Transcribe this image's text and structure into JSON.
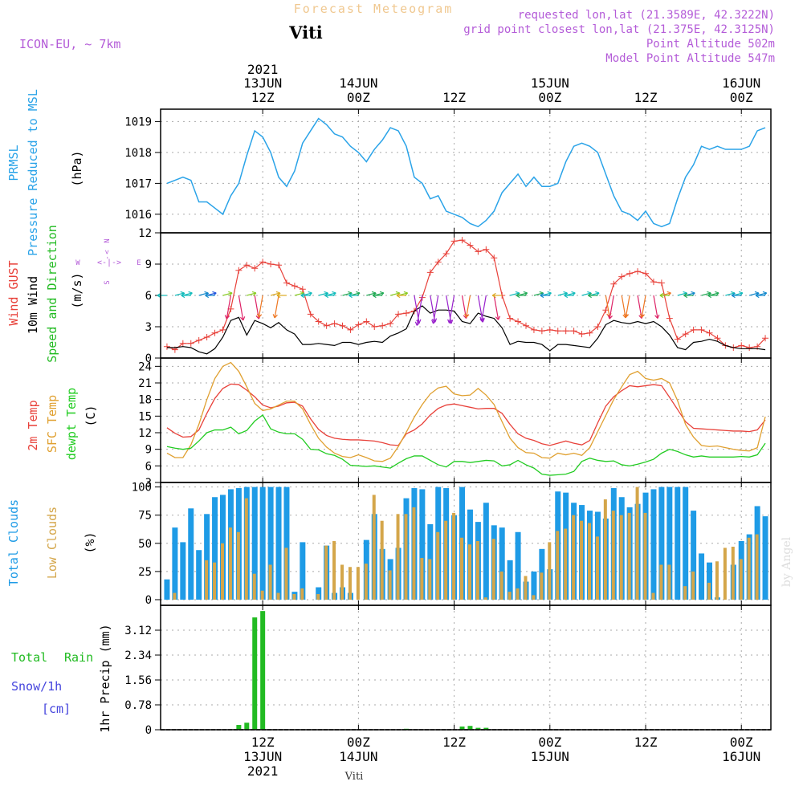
{
  "header": {
    "title": "Forecast Meteogram",
    "location": "Viti",
    "model": "ICON-EU, ~ 7km",
    "requested": "requested lon,lat (21.3589E, 42.3222N)",
    "gridpoint": "grid point closest lon,lat (21.375E, 42.3125N)",
    "point_altitude": "Point Altitude 502m",
    "model_altitude": "Model Point Altitude 547m"
  },
  "colors": {
    "prmsl": "#2aa3e8",
    "gust": "#e8413a",
    "wind10m": "#000000",
    "wind_dir": "#22bb22",
    "temp2m": "#e8413a",
    "sfc": "#e0a030",
    "dewpt": "#22cc22",
    "total_clouds": "#1e9be6",
    "low_clouds": "#d4a64a",
    "rain": "#22bb22",
    "snow": "#4444dd",
    "meta": "#b45cd8",
    "title_orange": "#f0c890"
  },
  "top_axis": [
    {
      "t": 12,
      "l1": "2021",
      "l2": "13JUN",
      "l3": "12Z"
    },
    {
      "t": 24,
      "l1": "",
      "l2": "14JUN",
      "l3": "00Z"
    },
    {
      "t": 36,
      "l1": "",
      "l2": "",
      "l3": "12Z"
    },
    {
      "t": 48,
      "l1": "",
      "l2": "15JUN",
      "l3": "00Z"
    },
    {
      "t": 60,
      "l1": "",
      "l2": "",
      "l3": "12Z"
    },
    {
      "t": 72,
      "l1": "",
      "l2": "16JUN",
      "l3": "00Z"
    }
  ],
  "bottom_axis": [
    {
      "t": 12,
      "l1": "12Z",
      "l2": "13JUN",
      "l3": "2021"
    },
    {
      "t": 24,
      "l1": "00Z",
      "l2": "14JUN",
      "l3": ""
    },
    {
      "t": 36,
      "l1": "12Z",
      "l2": "",
      "l3": ""
    },
    {
      "t": 48,
      "l1": "00Z",
      "l2": "15JUN",
      "l3": ""
    },
    {
      "t": 60,
      "l1": "12Z",
      "l2": "",
      "l3": ""
    },
    {
      "t": 72,
      "l1": "00Z",
      "l2": "16JUN",
      "l3": ""
    }
  ],
  "footer_label": "Viti",
  "watermark": "by Angel",
  "panel_labels": {
    "prmsl": [
      "PRMSL",
      "Pressure Reduced to MSL",
      "(hPa)"
    ],
    "wind": [
      "Wind GUST",
      "10m Wind",
      "Speed and Direction",
      "(m/s)"
    ],
    "compass": {
      "n": "N",
      "s": "S",
      "w": "W",
      "e": "E",
      "arrows": "<-|->"
    },
    "temp": [
      "2m Temp",
      "SFC Temp",
      "dewpt Temp",
      "(C)"
    ],
    "clouds": [
      "Total Clouds",
      "Low Clouds",
      "(%)"
    ],
    "precip": [
      "Total",
      "Rain",
      "Snow/1h",
      "[cm]",
      "1hr Precip (mm)"
    ]
  },
  "chart_data": [
    {
      "type": "line",
      "title": "PRMSL Pressure Reduced to MSL",
      "ylabel": "(hPa)",
      "ylim": [
        1015.4,
        1019.4
      ],
      "yticks": [
        1016,
        1017,
        1018,
        1019
      ],
      "x_hours": [
        0,
        1,
        2,
        3,
        4,
        5,
        6,
        7,
        8,
        9,
        10,
        11,
        12,
        13,
        14,
        15,
        16,
        17,
        18,
        19,
        20,
        21,
        22,
        23,
        24,
        25,
        26,
        27,
        28,
        29,
        30,
        31,
        32,
        33,
        34,
        35,
        36,
        37,
        38,
        39,
        40,
        41,
        42,
        43,
        44,
        45,
        46,
        47,
        48,
        49,
        50,
        51,
        52,
        53,
        54,
        55,
        56,
        57,
        58,
        59,
        60,
        61,
        62,
        63,
        64,
        65,
        66,
        67,
        68,
        69,
        70,
        71,
        72,
        73,
        74,
        75
      ],
      "series": [
        {
          "values": [
            1017.0,
            1017.1,
            1017.2,
            1017.1,
            1016.4,
            1016.4,
            1016.2,
            1016.0,
            1016.6,
            1017.0,
            1017.9,
            1018.7,
            1018.5,
            1018.0,
            1017.2,
            1016.9,
            1017.4,
            1018.3,
            1018.7,
            1019.1,
            1018.9,
            1018.6,
            1018.5,
            1018.2,
            1018.0,
            1017.7,
            1018.1,
            1018.4,
            1018.8,
            1018.7,
            1018.2,
            1017.2,
            1017.0,
            1016.5,
            1016.6,
            1016.1,
            1016.0,
            1015.9,
            1015.7,
            1015.6,
            1015.8,
            1016.1,
            1016.7,
            1017.0,
            1017.3,
            1016.9,
            1017.2,
            1016.9,
            1016.9,
            1017.0,
            1017.7,
            1018.2,
            1018.3,
            1018.2,
            1018.0,
            1017.3,
            1016.6,
            1016.1,
            1016.0,
            1015.8,
            1016.1,
            1015.7,
            1015.6,
            1015.7,
            1016.5,
            1017.2,
            1017.6,
            1018.2,
            1018.1,
            1018.2,
            1018.1,
            1018.1,
            1018.1,
            1018.2,
            1018.7,
            1018.8
          ]
        }
      ]
    },
    {
      "type": "line",
      "title": "Wind GUST / 10m Wind Speed and Direction",
      "ylabel": "(m/s)",
      "ylim": [
        0,
        12
      ],
      "yticks": [
        0,
        3,
        6,
        9,
        12
      ],
      "x_hours": [
        0,
        1,
        2,
        3,
        4,
        5,
        6,
        7,
        8,
        9,
        10,
        11,
        12,
        13,
        14,
        15,
        16,
        17,
        18,
        19,
        20,
        21,
        22,
        23,
        24,
        25,
        26,
        27,
        28,
        29,
        30,
        31,
        32,
        33,
        34,
        35,
        36,
        37,
        38,
        39,
        40,
        41,
        42,
        43,
        44,
        45,
        46,
        47,
        48,
        49,
        50,
        51,
        52,
        53,
        54,
        55,
        56,
        57,
        58,
        59,
        60,
        61,
        62,
        63,
        64,
        65,
        66,
        67,
        68,
        69,
        70,
        71,
        72,
        73,
        74,
        75
      ],
      "series": [
        {
          "name": "Wind GUST",
          "values": [
            1.1,
            0.8,
            1.4,
            1.4,
            1.7,
            2.0,
            2.4,
            2.7,
            4.7,
            8.4,
            8.9,
            8.6,
            9.2,
            9.0,
            8.9,
            7.2,
            6.9,
            6.6,
            4.2,
            3.5,
            3.1,
            3.3,
            3.1,
            2.7,
            3.2,
            3.5,
            3.0,
            3.1,
            3.3,
            4.2,
            4.3,
            4.5,
            5.8,
            8.2,
            9.2,
            10.0,
            11.2,
            11.3,
            10.8,
            10.2,
            10.4,
            9.6,
            6.0,
            3.8,
            3.5,
            3.1,
            2.7,
            2.6,
            2.7,
            2.6,
            2.6,
            2.6,
            2.3,
            2.4,
            3.0,
            4.6,
            7.1,
            7.8,
            8.1,
            8.3,
            8.1,
            7.3,
            7.2,
            3.8,
            1.8,
            2.3,
            2.7,
            2.7,
            2.4,
            1.9,
            1.2,
            1.0,
            1.2,
            1.0,
            1.1,
            1.9
          ]
        },
        {
          "name": "10m Wind",
          "values": [
            1.0,
            1.0,
            1.1,
            1.0,
            0.6,
            0.4,
            0.9,
            2.0,
            3.6,
            3.9,
            2.2,
            3.6,
            3.3,
            2.9,
            3.4,
            2.7,
            2.3,
            1.3,
            1.3,
            1.4,
            1.3,
            1.2,
            1.5,
            1.5,
            1.3,
            1.5,
            1.6,
            1.5,
            2.1,
            2.4,
            2.8,
            4.5,
            5.0,
            4.3,
            4.6,
            4.6,
            4.5,
            3.5,
            3.3,
            4.3,
            4.0,
            3.8,
            2.9,
            1.3,
            1.6,
            1.5,
            1.5,
            1.3,
            0.7,
            1.3,
            1.3,
            1.2,
            1.1,
            1.0,
            1.9,
            3.2,
            3.6,
            3.4,
            3.3,
            3.5,
            3.3,
            3.5,
            3.0,
            2.2,
            1.0,
            0.8,
            1.5,
            1.6,
            1.8,
            1.6,
            1.2,
            1.0,
            0.9,
            0.9,
            0.9,
            0.8
          ]
        }
      ]
    },
    {
      "type": "line",
      "title": "2m Temp / SFC Temp / dewpt Temp",
      "ylabel": "(C)",
      "ylim": [
        3,
        25.5
      ],
      "yticks": [
        3,
        6,
        9,
        12,
        15,
        18,
        21,
        24
      ],
      "x_hours": [
        0,
        1,
        2,
        3,
        4,
        5,
        6,
        7,
        8,
        9,
        10,
        11,
        12,
        13,
        14,
        15,
        16,
        17,
        18,
        19,
        20,
        21,
        22,
        23,
        24,
        25,
        26,
        27,
        28,
        29,
        30,
        31,
        32,
        33,
        34,
        35,
        36,
        37,
        38,
        39,
        40,
        41,
        42,
        43,
        44,
        45,
        46,
        47,
        48,
        49,
        50,
        51,
        52,
        53,
        54,
        55,
        56,
        57,
        58,
        59,
        60,
        61,
        62,
        63,
        64,
        65,
        66,
        67,
        68,
        69,
        70,
        71,
        72,
        73,
        74,
        75
      ],
      "series": [
        {
          "name": "2m Temp",
          "values": [
            12.9,
            11.9,
            11.2,
            11.3,
            12.5,
            15.5,
            18.2,
            20.0,
            20.8,
            20.7,
            19.7,
            18.5,
            17.0,
            16.5,
            16.8,
            17.4,
            17.5,
            16.8,
            14.5,
            12.6,
            11.5,
            11.0,
            10.8,
            10.7,
            10.7,
            10.6,
            10.5,
            10.2,
            9.8,
            9.7,
            11.8,
            12.5,
            13.6,
            15.2,
            16.4,
            17.0,
            17.2,
            16.9,
            16.6,
            16.3,
            16.4,
            16.4,
            15.5,
            13.5,
            11.8,
            11.0,
            10.6,
            10.0,
            9.7,
            10.1,
            10.5,
            10.1,
            9.8,
            10.6,
            13.8,
            16.8,
            18.5,
            19.6,
            20.5,
            20.3,
            20.5,
            20.7,
            20.5,
            18.4,
            16.2,
            14.0,
            12.8,
            12.7,
            12.6,
            12.5,
            12.4,
            12.3,
            12.3,
            12.2,
            12.5,
            14.3
          ]
        },
        {
          "name": "SFC Temp",
          "values": [
            8.3,
            7.5,
            7.5,
            9.8,
            13.5,
            18.0,
            21.8,
            24.0,
            24.7,
            23.1,
            20.3,
            17.3,
            16.0,
            16.3,
            17.0,
            17.7,
            17.7,
            16.3,
            13.5,
            11.0,
            9.4,
            8.3,
            7.7,
            7.5,
            8.0,
            7.5,
            6.9,
            6.8,
            7.4,
            9.5,
            12.1,
            14.8,
            17.1,
            19.0,
            20.1,
            20.4,
            19.0,
            18.7,
            18.8,
            20.0,
            18.8,
            17.1,
            14.0,
            11.0,
            9.3,
            8.4,
            8.3,
            7.5,
            7.4,
            8.3,
            8.0,
            8.3,
            7.9,
            9.3,
            12.2,
            15.1,
            18.0,
            20.3,
            22.5,
            23.1,
            21.8,
            21.5,
            21.8,
            21.0,
            17.8,
            13.5,
            11.2,
            9.7,
            9.5,
            9.6,
            9.3,
            9.0,
            8.8,
            8.7,
            9.3,
            14.9
          ]
        },
        {
          "name": "dewpt Temp",
          "values": [
            9.5,
            9.2,
            9.0,
            9.2,
            10.5,
            12.0,
            12.5,
            12.5,
            13.0,
            11.8,
            12.4,
            14.1,
            15.2,
            12.7,
            12.1,
            11.8,
            11.8,
            10.8,
            9.0,
            8.9,
            8.2,
            7.9,
            7.2,
            6.1,
            6.0,
            5.9,
            6.0,
            5.8,
            5.6,
            6.5,
            7.3,
            7.8,
            7.8,
            7.0,
            6.2,
            5.8,
            6.8,
            6.8,
            6.6,
            6.8,
            7.0,
            6.9,
            6.0,
            6.2,
            7.0,
            6.2,
            5.6,
            4.5,
            4.3,
            4.4,
            4.5,
            5.0,
            6.8,
            7.4,
            7.0,
            6.8,
            6.9,
            6.2,
            6.0,
            6.3,
            6.7,
            7.2,
            8.3,
            9.0,
            8.6,
            8.0,
            7.6,
            7.8,
            7.6,
            7.6,
            7.6,
            7.6,
            7.7,
            7.6,
            8.0,
            10.1
          ]
        }
      ]
    },
    {
      "type": "bar",
      "title": "Total Clouds / Low Clouds",
      "ylabel": "(%)",
      "ylim": [
        -5,
        104
      ],
      "yticks": [
        0,
        25,
        50,
        75,
        100
      ],
      "x_hours": [
        0,
        1,
        2,
        3,
        4,
        5,
        6,
        7,
        8,
        9,
        10,
        11,
        12,
        13,
        14,
        15,
        16,
        17,
        18,
        19,
        20,
        21,
        22,
        23,
        24,
        25,
        26,
        27,
        28,
        29,
        30,
        31,
        32,
        33,
        34,
        35,
        36,
        37,
        38,
        39,
        40,
        41,
        42,
        43,
        44,
        45,
        46,
        47,
        48,
        49,
        50,
        51,
        52,
        53,
        54,
        55,
        56,
        57,
        58,
        59,
        60,
        61,
        62,
        63,
        64,
        65,
        66,
        67,
        68,
        69,
        70,
        71,
        72,
        73,
        74,
        75
      ],
      "series": [
        {
          "name": "Total Clouds",
          "values": [
            18,
            64,
            51,
            81,
            44,
            76,
            91,
            93,
            98,
            99,
            100,
            100,
            100,
            100,
            100,
            100,
            7,
            51,
            0,
            11,
            48,
            6,
            11,
            6,
            0,
            53,
            76,
            45,
            36,
            46,
            90,
            99,
            98,
            67,
            100,
            99,
            75,
            100,
            80,
            69,
            86,
            66,
            64,
            35,
            60,
            16,
            25,
            45,
            27,
            96,
            95,
            86,
            84,
            79,
            78,
            72,
            99,
            91,
            82,
            85,
            95,
            98,
            100,
            100,
            100,
            100,
            79,
            41,
            33,
            2,
            0,
            31,
            52,
            58,
            83,
            74
          ]
        },
        {
          "name": "Low Clouds",
          "values": [
            0,
            6,
            0,
            0,
            0,
            35,
            33,
            50,
            64,
            60,
            90,
            23,
            8,
            31,
            6,
            46,
            5,
            10,
            0,
            5,
            48,
            52,
            31,
            29,
            29,
            32,
            93,
            70,
            26,
            76,
            76,
            82,
            37,
            36,
            60,
            70,
            77,
            55,
            49,
            52,
            2,
            54,
            25,
            7,
            10,
            21,
            4,
            24,
            51,
            61,
            63,
            75,
            70,
            68,
            56,
            89,
            79,
            75,
            77,
            100,
            77,
            6,
            31,
            31,
            0,
            12,
            25,
            0,
            15,
            34,
            46,
            47,
            36,
            55,
            58,
            0
          ]
        }
      ]
    },
    {
      "type": "bar",
      "title": "1hr Precip",
      "ylabel": "1hr Precip (mm)",
      "ylim": [
        0,
        3.9
      ],
      "yticks": [
        0,
        0.78,
        1.56,
        2.34,
        3.12
      ],
      "ytick_labels": [
        "0",
        "0.78",
        "1.56",
        "2.34",
        "3.12"
      ],
      "x_hours": [
        9,
        10,
        11,
        12,
        30,
        37,
        38,
        39,
        40
      ],
      "series": [
        {
          "name": "Total Rain",
          "values": [
            0.15,
            0.22,
            3.52,
            3.72,
            0.03,
            0.1,
            0.12,
            0.06,
            0.06
          ]
        }
      ]
    }
  ]
}
